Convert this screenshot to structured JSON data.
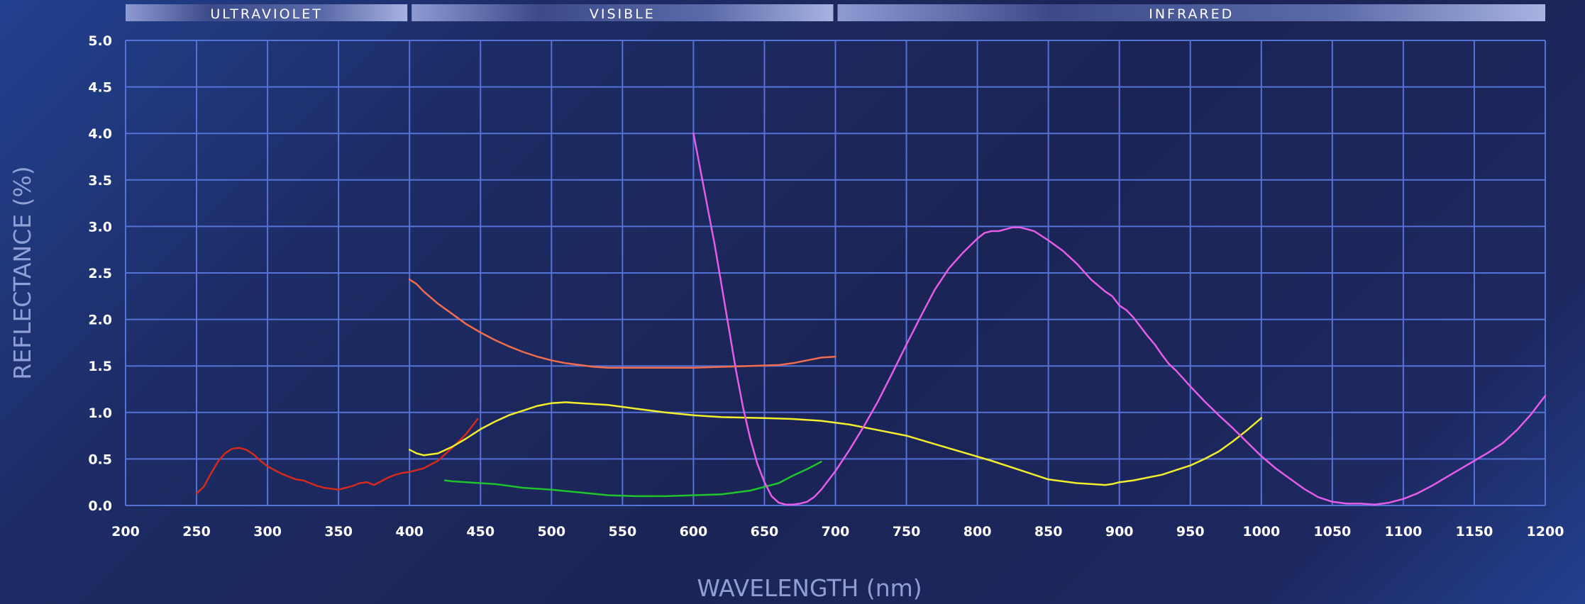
{
  "bands": [
    {
      "label": "ULTRAVIOLET",
      "from": 200,
      "to": 400
    },
    {
      "label": "VISIBLE",
      "from": 400,
      "to": 700
    },
    {
      "label": "INFRARED",
      "from": 700,
      "to": 1200
    }
  ],
  "chart_data": {
    "type": "line",
    "xlabel": "WAVELENGTH (nm)",
    "ylabel": "REFLECTANCE (%)",
    "xlim": [
      200,
      1200
    ],
    "ylim": [
      0,
      5
    ],
    "x_ticks": [
      200,
      250,
      300,
      350,
      400,
      450,
      500,
      550,
      600,
      650,
      700,
      750,
      800,
      850,
      900,
      950,
      1000,
      1050,
      1100,
      1150,
      1200
    ],
    "y_ticks": [
      "0.0",
      "0.5",
      "1.0",
      "1.5",
      "2.0",
      "2.5",
      "3.0",
      "3.5",
      "4.0",
      "4.5",
      "5.0"
    ],
    "grid": true,
    "legend": "none",
    "series": [
      {
        "color": "#d42a1c",
        "points": [
          [
            250,
            0.13
          ],
          [
            255,
            0.2
          ],
          [
            260,
            0.34
          ],
          [
            265,
            0.47
          ],
          [
            270,
            0.56
          ],
          [
            275,
            0.61
          ],
          [
            280,
            0.62
          ],
          [
            285,
            0.6
          ],
          [
            290,
            0.55
          ],
          [
            295,
            0.48
          ],
          [
            300,
            0.42
          ],
          [
            305,
            0.38
          ],
          [
            310,
            0.34
          ],
          [
            315,
            0.31
          ],
          [
            320,
            0.28
          ],
          [
            325,
            0.27
          ],
          [
            330,
            0.24
          ],
          [
            335,
            0.21
          ],
          [
            340,
            0.19
          ],
          [
            345,
            0.18
          ],
          [
            350,
            0.17
          ],
          [
            355,
            0.19
          ],
          [
            360,
            0.21
          ],
          [
            365,
            0.24
          ],
          [
            370,
            0.25
          ],
          [
            375,
            0.22
          ],
          [
            380,
            0.26
          ],
          [
            385,
            0.3
          ],
          [
            390,
            0.33
          ],
          [
            395,
            0.35
          ],
          [
            400,
            0.36
          ],
          [
            410,
            0.4
          ],
          [
            420,
            0.48
          ],
          [
            430,
            0.62
          ],
          [
            440,
            0.77
          ],
          [
            448,
            0.93
          ]
        ]
      },
      {
        "color": "#f06c4c",
        "points": [
          [
            400,
            2.43
          ],
          [
            405,
            2.38
          ],
          [
            410,
            2.3
          ],
          [
            420,
            2.17
          ],
          [
            430,
            2.06
          ],
          [
            440,
            1.95
          ],
          [
            450,
            1.86
          ],
          [
            460,
            1.78
          ],
          [
            470,
            1.71
          ],
          [
            480,
            1.65
          ],
          [
            490,
            1.6
          ],
          [
            500,
            1.56
          ],
          [
            510,
            1.53
          ],
          [
            520,
            1.51
          ],
          [
            530,
            1.49
          ],
          [
            540,
            1.48
          ],
          [
            550,
            1.48
          ],
          [
            560,
            1.48
          ],
          [
            580,
            1.48
          ],
          [
            600,
            1.48
          ],
          [
            620,
            1.49
          ],
          [
            640,
            1.5
          ],
          [
            660,
            1.51
          ],
          [
            670,
            1.53
          ],
          [
            680,
            1.56
          ],
          [
            690,
            1.59
          ],
          [
            700,
            1.6
          ]
        ]
      },
      {
        "color": "#f2ee2e",
        "points": [
          [
            400,
            0.6
          ],
          [
            405,
            0.56
          ],
          [
            410,
            0.54
          ],
          [
            420,
            0.56
          ],
          [
            430,
            0.63
          ],
          [
            440,
            0.72
          ],
          [
            450,
            0.82
          ],
          [
            460,
            0.9
          ],
          [
            470,
            0.97
          ],
          [
            480,
            1.02
          ],
          [
            490,
            1.07
          ],
          [
            500,
            1.1
          ],
          [
            510,
            1.11
          ],
          [
            520,
            1.1
          ],
          [
            540,
            1.08
          ],
          [
            560,
            1.04
          ],
          [
            580,
            1.0
          ],
          [
            600,
            0.97
          ],
          [
            620,
            0.95
          ],
          [
            650,
            0.94
          ],
          [
            670,
            0.93
          ],
          [
            690,
            0.91
          ],
          [
            710,
            0.87
          ],
          [
            730,
            0.81
          ],
          [
            750,
            0.75
          ],
          [
            770,
            0.66
          ],
          [
            790,
            0.57
          ],
          [
            810,
            0.48
          ],
          [
            830,
            0.38
          ],
          [
            850,
            0.28
          ],
          [
            870,
            0.24
          ],
          [
            880,
            0.23
          ],
          [
            890,
            0.22
          ],
          [
            895,
            0.23
          ],
          [
            900,
            0.25
          ],
          [
            910,
            0.27
          ],
          [
            920,
            0.3
          ],
          [
            930,
            0.33
          ],
          [
            940,
            0.38
          ],
          [
            950,
            0.43
          ],
          [
            960,
            0.5
          ],
          [
            970,
            0.58
          ],
          [
            980,
            0.69
          ],
          [
            990,
            0.81
          ],
          [
            1000,
            0.94
          ]
        ]
      },
      {
        "color": "#1fc32b",
        "points": [
          [
            425,
            0.27
          ],
          [
            430,
            0.26
          ],
          [
            440,
            0.25
          ],
          [
            450,
            0.24
          ],
          [
            460,
            0.23
          ],
          [
            470,
            0.21
          ],
          [
            480,
            0.19
          ],
          [
            500,
            0.17
          ],
          [
            520,
            0.14
          ],
          [
            540,
            0.11
          ],
          [
            560,
            0.1
          ],
          [
            580,
            0.1
          ],
          [
            600,
            0.11
          ],
          [
            620,
            0.12
          ],
          [
            640,
            0.16
          ],
          [
            660,
            0.24
          ],
          [
            670,
            0.32
          ],
          [
            680,
            0.39
          ],
          [
            690,
            0.47
          ]
        ]
      },
      {
        "color": "#e45ce8",
        "points": [
          [
            600,
            4.0
          ],
          [
            605,
            3.6
          ],
          [
            610,
            3.2
          ],
          [
            615,
            2.8
          ],
          [
            620,
            2.35
          ],
          [
            625,
            1.9
          ],
          [
            630,
            1.45
          ],
          [
            635,
            1.05
          ],
          [
            640,
            0.72
          ],
          [
            645,
            0.45
          ],
          [
            650,
            0.25
          ],
          [
            655,
            0.1
          ],
          [
            660,
            0.03
          ],
          [
            665,
            0.01
          ],
          [
            670,
            0.01
          ],
          [
            675,
            0.02
          ],
          [
            680,
            0.04
          ],
          [
            685,
            0.09
          ],
          [
            690,
            0.17
          ],
          [
            695,
            0.27
          ],
          [
            700,
            0.37
          ],
          [
            710,
            0.6
          ],
          [
            720,
            0.85
          ],
          [
            730,
            1.12
          ],
          [
            740,
            1.42
          ],
          [
            750,
            1.73
          ],
          [
            760,
            2.03
          ],
          [
            770,
            2.32
          ],
          [
            780,
            2.55
          ],
          [
            790,
            2.72
          ],
          [
            800,
            2.87
          ],
          [
            805,
            2.93
          ],
          [
            810,
            2.95
          ],
          [
            815,
            2.95
          ],
          [
            820,
            2.97
          ],
          [
            825,
            2.99
          ],
          [
            830,
            2.99
          ],
          [
            835,
            2.97
          ],
          [
            840,
            2.95
          ],
          [
            845,
            2.9
          ],
          [
            850,
            2.85
          ],
          [
            860,
            2.74
          ],
          [
            870,
            2.6
          ],
          [
            880,
            2.43
          ],
          [
            890,
            2.3
          ],
          [
            895,
            2.25
          ],
          [
            900,
            2.15
          ],
          [
            905,
            2.1
          ],
          [
            910,
            2.02
          ],
          [
            915,
            1.92
          ],
          [
            920,
            1.82
          ],
          [
            925,
            1.73
          ],
          [
            930,
            1.62
          ],
          [
            935,
            1.52
          ],
          [
            940,
            1.45
          ],
          [
            950,
            1.28
          ],
          [
            960,
            1.12
          ],
          [
            970,
            0.97
          ],
          [
            980,
            0.83
          ],
          [
            990,
            0.68
          ],
          [
            1000,
            0.53
          ],
          [
            1010,
            0.4
          ],
          [
            1020,
            0.29
          ],
          [
            1030,
            0.18
          ],
          [
            1040,
            0.09
          ],
          [
            1050,
            0.04
          ],
          [
            1060,
            0.02
          ],
          [
            1070,
            0.02
          ],
          [
            1080,
            0.01
          ],
          [
            1090,
            0.03
          ],
          [
            1100,
            0.07
          ],
          [
            1110,
            0.13
          ],
          [
            1120,
            0.21
          ],
          [
            1130,
            0.3
          ],
          [
            1140,
            0.39
          ],
          [
            1150,
            0.48
          ],
          [
            1160,
            0.57
          ],
          [
            1170,
            0.67
          ],
          [
            1180,
            0.81
          ],
          [
            1190,
            0.98
          ],
          [
            1200,
            1.18
          ]
        ]
      }
    ]
  }
}
